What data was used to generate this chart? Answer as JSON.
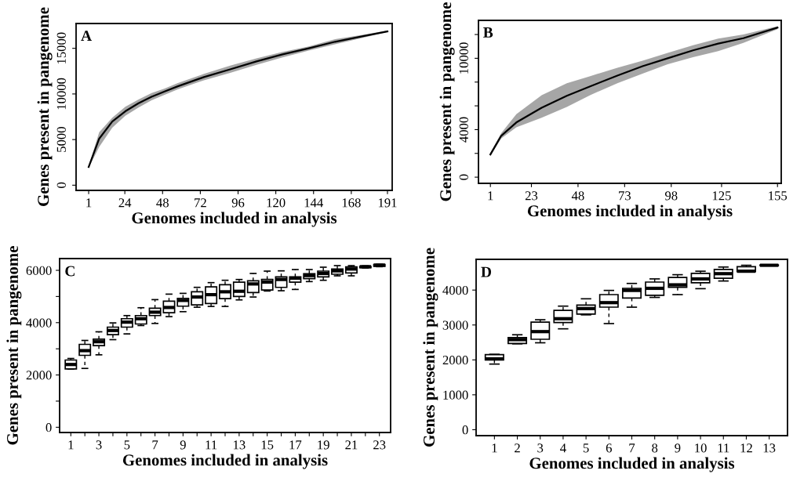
{
  "chart_data": [
    {
      "type": "line",
      "title": "A",
      "xlabel": "Genomes included in analysis",
      "ylabel": "Genes present in pangenome",
      "xlim": [
        -7,
        194
      ],
      "xticks": [
        1,
        24,
        48,
        72,
        96,
        120,
        144,
        168,
        191
      ],
      "ylim": [
        -570,
        17720
      ],
      "yticks": [
        0,
        5000,
        10000,
        15000
      ],
      "series": [
        {
          "color": "#000000",
          "x": [
            1,
            7.7,
            16,
            24.3,
            32.7,
            41,
            49.3,
            57.7,
            74.3,
            91,
            107.7,
            124.3,
            141,
            157.7,
            174.3,
            191
          ],
          "values": [
            2000,
            5100,
            6970,
            8100,
            8980,
            9690,
            10270,
            10840,
            11850,
            12700,
            13570,
            14340,
            15000,
            15720,
            16290,
            16860
          ],
          "lower": [
            1900,
            4200,
            6300,
            7600,
            8500,
            9300,
            9900,
            10500,
            11500,
            12300,
            13200,
            14000,
            14750,
            15450,
            16100,
            16800
          ],
          "upper": [
            2100,
            5800,
            7400,
            8600,
            9400,
            10100,
            10600,
            11200,
            12200,
            13100,
            13900,
            14600,
            15200,
            16000,
            16450,
            16950
          ]
        }
      ]
    },
    {
      "type": "line",
      "title": "B",
      "xlabel": "Genomes included in analysis",
      "ylabel": "Genes present in pangenome",
      "xlim": [
        -5.4,
        157
      ],
      "xticks": [
        1,
        23,
        48,
        73,
        98,
        125,
        155
      ],
      "ylim": [
        -520,
        13190
      ],
      "yticks": [
        0,
        {
          "value": 2000,
          "label": null
        },
        4000,
        {
          "value": 6000,
          "label": null
        },
        {
          "value": 8000,
          "label": null
        },
        10000,
        {
          "value": 12000,
          "label": null
        }
      ],
      "series": [
        {
          "color": "#000000",
          "x": [
            1,
            6.8,
            14.9,
            28.5,
            42,
            54.5,
            69.1,
            82.6,
            96.1,
            109.7,
            123.2,
            136.7,
            155
          ],
          "values": [
            1910,
            3480,
            4600,
            5840,
            6850,
            7640,
            8540,
            9330,
            10000,
            10670,
            11240,
            11690,
            12580
          ],
          "lower": [
            1800,
            3250,
            4200,
            5000,
            5900,
            6900,
            7900,
            8700,
            9500,
            10100,
            10600,
            11300,
            12450
          ],
          "upper": [
            2050,
            3700,
            5300,
            6900,
            7900,
            8500,
            9200,
            9800,
            10450,
            11100,
            11650,
            12000,
            12700
          ]
        }
      ]
    },
    {
      "type": "box",
      "title": "C",
      "xlabel": "Genomes included in analysis",
      "ylabel": "Genes present in pangenome",
      "categories": [
        "1",
        null,
        "3",
        null,
        "5",
        null,
        "7",
        null,
        "9",
        null,
        "11",
        null,
        "13",
        null,
        "15",
        null,
        "17",
        null,
        "19",
        null,
        "21",
        null,
        "23"
      ],
      "ylim": [
        -200,
        6450
      ],
      "yticks": [
        0,
        {
          "value": 1000,
          "label": null
        },
        2000,
        {
          "value": 3000,
          "label": null
        },
        4000,
        {
          "value": 5000,
          "label": null
        },
        6000
      ],
      "boxes": [
        {
          "low": 2230,
          "q1": 2230,
          "median": 2400,
          "q3": 2570,
          "high": 2630
        },
        {
          "low": 2250,
          "q1": 2750,
          "median": 2930,
          "q3": 3170,
          "high": 3320
        },
        {
          "low": 2770,
          "q1": 3120,
          "median": 3270,
          "q3": 3370,
          "high": 3650
        },
        {
          "low": 3350,
          "q1": 3540,
          "median": 3700,
          "q3": 3830,
          "high": 3990
        },
        {
          "low": 3570,
          "q1": 3830,
          "median": 4020,
          "q3": 4150,
          "high": 4270
        },
        {
          "low": 3890,
          "q1": 3950,
          "median": 4150,
          "q3": 4270,
          "high": 4570
        },
        {
          "low": 3970,
          "q1": 4270,
          "median": 4400,
          "q3": 4550,
          "high": 4880
        },
        {
          "low": 4230,
          "q1": 4380,
          "median": 4580,
          "q3": 4820,
          "high": 5090
        },
        {
          "low": 4420,
          "q1": 4630,
          "median": 4850,
          "q3": 4930,
          "high": 5120
        },
        {
          "low": 4590,
          "q1": 4680,
          "median": 4980,
          "q3": 5180,
          "high": 5350
        },
        {
          "low": 4620,
          "q1": 4730,
          "median": 5070,
          "q3": 5370,
          "high": 5530
        },
        {
          "low": 4620,
          "q1": 4920,
          "median": 5180,
          "q3": 5450,
          "high": 5620
        },
        {
          "low": 4870,
          "q1": 5000,
          "median": 5200,
          "q3": 5550,
          "high": 5650
        },
        {
          "low": 4980,
          "q1": 5150,
          "median": 5480,
          "q3": 5600,
          "high": 5880
        },
        {
          "low": 5210,
          "q1": 5250,
          "median": 5550,
          "q3": 5650,
          "high": 5970
        },
        {
          "low": 5220,
          "q1": 5350,
          "median": 5650,
          "q3": 5750,
          "high": 5980
        },
        {
          "low": 5270,
          "q1": 5550,
          "median": 5700,
          "q3": 5750,
          "high": 6030
        },
        {
          "low": 5570,
          "q1": 5680,
          "median": 5800,
          "q3": 5870,
          "high": 6030
        },
        {
          "low": 5620,
          "q1": 5750,
          "median": 5880,
          "q3": 5970,
          "high": 6120
        },
        {
          "low": 5790,
          "q1": 5850,
          "median": 5980,
          "q3": 6050,
          "high": 6180
        },
        {
          "low": 5790,
          "q1": 5900,
          "median": 6050,
          "q3": 6130,
          "high": 6180
        },
        {
          "low": 6090,
          "q1": 6100,
          "median": 6140,
          "q3": 6150,
          "high": 6170
        },
        {
          "low": 6140,
          "q1": 6150,
          "median": 6200,
          "q3": 6220,
          "high": 6230
        }
      ]
    },
    {
      "type": "box",
      "title": "D",
      "xlabel": "Genomes included in analysis",
      "ylabel": "Genes present in pangenome",
      "categories": [
        "1",
        "2",
        "3",
        "4",
        "5",
        "6",
        "7",
        "8",
        "9",
        "10",
        "11",
        "12",
        "13"
      ],
      "ylim": [
        -170,
        4880
      ],
      "yticks": [
        0,
        1000,
        2000,
        3000,
        4000
      ],
      "boxes": [
        {
          "low": 1880,
          "q1": 2000,
          "median": 2030,
          "q3": 2150,
          "high": 2160
        },
        {
          "low": 2460,
          "q1": 2470,
          "median": 2580,
          "q3": 2640,
          "high": 2720
        },
        {
          "low": 2490,
          "q1": 2590,
          "median": 2810,
          "q3": 3080,
          "high": 3150
        },
        {
          "low": 2890,
          "q1": 3070,
          "median": 3180,
          "q3": 3420,
          "high": 3540
        },
        {
          "low": 3290,
          "q1": 3310,
          "median": 3470,
          "q3": 3570,
          "high": 3750
        },
        {
          "low": 3040,
          "q1": 3510,
          "median": 3640,
          "q3": 3870,
          "high": 3990
        },
        {
          "low": 3510,
          "q1": 3770,
          "median": 3990,
          "q3": 4050,
          "high": 4190
        },
        {
          "low": 3790,
          "q1": 3850,
          "median": 4050,
          "q3": 4230,
          "high": 4320
        },
        {
          "low": 3870,
          "q1": 4080,
          "median": 4150,
          "q3": 4360,
          "high": 4440
        },
        {
          "low": 4040,
          "q1": 4210,
          "median": 4320,
          "q3": 4480,
          "high": 4540
        },
        {
          "low": 4260,
          "q1": 4340,
          "median": 4470,
          "q3": 4590,
          "high": 4660
        },
        {
          "low": 4530,
          "q1": 4530,
          "median": 4540,
          "q3": 4670,
          "high": 4710
        },
        {
          "low": 4700,
          "q1": 4700,
          "median": 4710,
          "q3": 4720,
          "high": 4720
        }
      ]
    }
  ]
}
